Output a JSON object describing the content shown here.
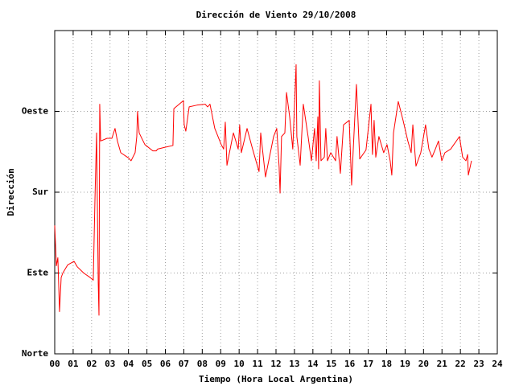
{
  "chart_data": {
    "type": "line",
    "title": "Dirección de Viento 29/10/2008",
    "x_label": "Tiempo (Hora Local Argentina)",
    "y_label": "Dirección",
    "color": "#ff0000",
    "grid": true,
    "xlim": [
      0,
      24
    ],
    "ylim": [
      0,
      360
    ],
    "xticks": [
      {
        "value": 0,
        "label": "00"
      },
      {
        "value": 1,
        "label": "01"
      },
      {
        "value": 2,
        "label": "02"
      },
      {
        "value": 3,
        "label": "03"
      },
      {
        "value": 4,
        "label": "04"
      },
      {
        "value": 5,
        "label": "05"
      },
      {
        "value": 6,
        "label": "06"
      },
      {
        "value": 7,
        "label": "07"
      },
      {
        "value": 8,
        "label": "08"
      },
      {
        "value": 9,
        "label": "09"
      },
      10,
      11,
      12,
      13,
      14,
      15,
      16,
      17,
      18,
      19,
      20,
      21,
      22,
      23,
      24
    ],
    "yticks": [
      {
        "value": 0,
        "label": "Norte"
      },
      {
        "value": 90,
        "label": "Este"
      },
      {
        "value": 180,
        "label": "Sur"
      },
      {
        "value": 270,
        "label": "Oeste"
      }
    ],
    "x": [
      0,
      0.09,
      0.17,
      0.26,
      0.35,
      0.44,
      0.7,
      1.05,
      1.22,
      1.57,
      1.92,
      2.09,
      2.18,
      2.27,
      2.36,
      2.4,
      2.44,
      2.49,
      2.84,
      3.1,
      3.27,
      3.4,
      3.58,
      4.01,
      4.14,
      4.36,
      4.45,
      4.49,
      4.58,
      4.89,
      5.32,
      5.5,
      5.58,
      5.98,
      6.41,
      6.46,
      6.98,
      7.02,
      7.11,
      7.29,
      7.72,
      8.16,
      8.29,
      8.42,
      8.68,
      9.03,
      9.16,
      9.25,
      9.34,
      9.6,
      9.69,
      9.95,
      10.03,
      10.12,
      10.43,
      10.73,
      11.08,
      11.17,
      11.43,
      11.87,
      12.04,
      12.17,
      12.22,
      12.3,
      12.48,
      12.57,
      12.74,
      12.91,
      13.09,
      13.13,
      13.31,
      13.48,
      13.74,
      13.92,
      14.09,
      14.18,
      14.27,
      14.31,
      14.35,
      14.44,
      14.62,
      14.7,
      14.79,
      14.97,
      15.23,
      15.31,
      15.49,
      15.66,
      15.97,
      16.1,
      16.19,
      16.36,
      16.54,
      16.88,
      17.15,
      17.23,
      17.32,
      17.41,
      17.58,
      17.84,
      18.02,
      18.19,
      18.28,
      18.37,
      18.63,
      18.89,
      19.15,
      19.33,
      19.42,
      19.59,
      19.85,
      20.11,
      20.29,
      20.46,
      20.64,
      20.81,
      20.99,
      21.16,
      21.47,
      21.95,
      22.12,
      22.3,
      22.39,
      22.43,
      22.6
    ],
    "values": [
      143,
      98,
      107,
      47,
      85,
      90,
      99,
      103,
      97,
      90,
      85,
      82,
      170,
      246,
      79,
      43,
      278,
      237,
      240,
      240,
      251,
      237,
      224,
      218,
      215,
      224,
      242,
      270,
      246,
      233,
      226,
      226,
      228,
      230,
      232,
      273,
      282,
      255,
      248,
      275,
      277,
      278,
      275,
      278,
      251,
      233,
      228,
      258,
      210,
      237,
      246,
      228,
      255,
      224,
      251,
      228,
      203,
      246,
      197,
      242,
      251,
      208,
      179,
      242,
      246,
      291,
      264,
      228,
      322,
      242,
      210,
      278,
      242,
      215,
      251,
      215,
      264,
      206,
      304,
      215,
      219,
      251,
      215,
      224,
      215,
      242,
      201,
      255,
      260,
      188,
      228,
      300,
      217,
      227,
      278,
      222,
      260,
      219,
      242,
      224,
      233,
      215,
      199,
      246,
      281,
      260,
      237,
      224,
      255,
      209,
      224,
      255,
      228,
      219,
      228,
      237,
      215,
      224,
      228,
      242,
      219,
      215,
      222,
      199,
      215
    ]
  }
}
